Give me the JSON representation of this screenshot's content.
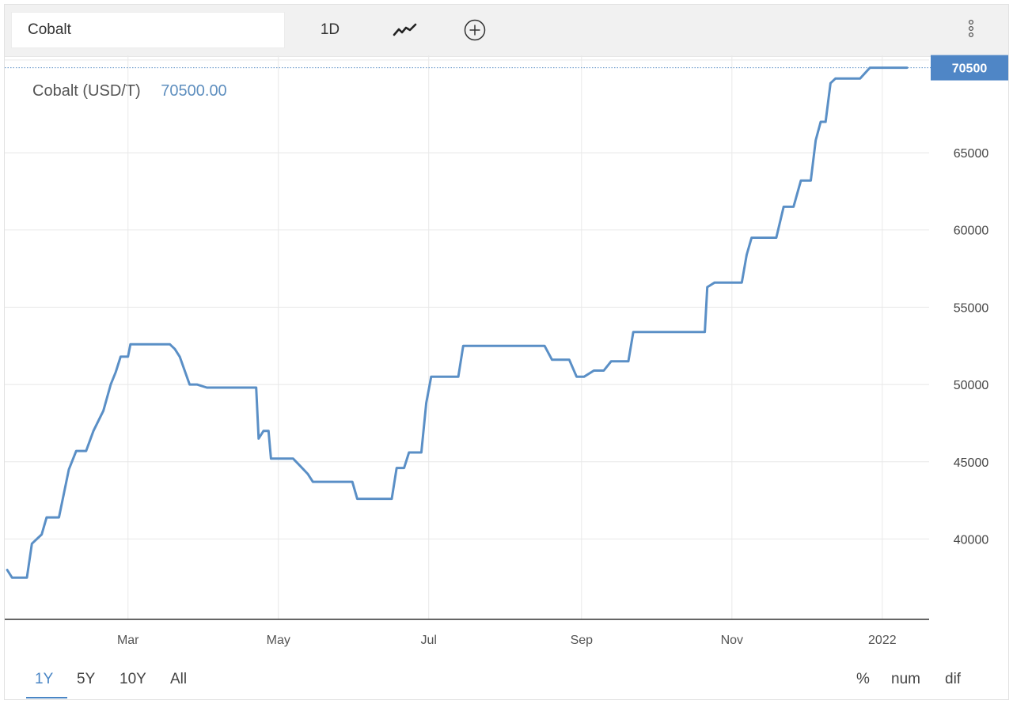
{
  "toolbar": {
    "symbol_value": "Cobalt",
    "interval_label": "1D",
    "chart_type_icon": "line-chart-icon",
    "add_icon": "add-circle-icon",
    "more_icon": "vertical-dots-icon"
  },
  "header": {
    "name": "Cobalt (USD/T)",
    "value": "70500.00"
  },
  "colors": {
    "line": "#5a8fc6",
    "last_label_bg": "#4f86c6",
    "grid": "#e8e8e8",
    "active_range": "#4a86c5"
  },
  "ranges": [
    {
      "label": "1Y",
      "active": true
    },
    {
      "label": "5Y",
      "active": false
    },
    {
      "label": "10Y",
      "active": false
    },
    {
      "label": "All",
      "active": false
    }
  ],
  "modes": [
    "%",
    "num",
    "dif"
  ],
  "chart_data": {
    "type": "line",
    "series": [
      {
        "x": [
          "2021-01-11",
          "2021-01-13",
          "2021-01-19",
          "2021-01-21",
          "2021-01-25",
          "2021-01-27",
          "2021-01-29",
          "2021-02-01",
          "2021-02-05",
          "2021-02-08",
          "2021-02-10",
          "2021-02-12",
          "2021-02-15",
          "2021-02-19",
          "2021-02-22",
          "2021-02-24",
          "2021-02-26",
          "2021-03-01",
          "2021-03-02",
          "2021-03-18",
          "2021-03-20",
          "2021-03-22",
          "2021-03-26",
          "2021-03-29",
          "2021-04-02",
          "2021-04-05",
          "2021-04-22",
          "2021-04-23",
          "2021-04-25",
          "2021-04-27",
          "2021-04-28",
          "2021-04-30",
          "2021-05-07",
          "2021-05-10",
          "2021-05-13",
          "2021-05-15",
          "2021-05-17",
          "2021-05-31",
          "2021-06-02",
          "2021-06-16",
          "2021-06-18",
          "2021-06-21",
          "2021-06-23",
          "2021-06-28",
          "2021-06-30",
          "2021-07-02",
          "2021-07-13",
          "2021-07-15",
          "2021-08-17",
          "2021-08-20",
          "2021-08-27",
          "2021-08-30",
          "2021-09-02",
          "2021-09-06",
          "2021-09-10",
          "2021-09-13",
          "2021-09-20",
          "2021-09-22",
          "2021-10-21",
          "2021-10-22",
          "2021-10-25",
          "2021-11-05",
          "2021-11-07",
          "2021-11-09",
          "2021-11-19",
          "2021-11-22",
          "2021-11-26",
          "2021-11-29",
          "2021-12-03",
          "2021-12-05",
          "2021-12-07",
          "2021-12-09",
          "2021-12-11",
          "2021-12-13",
          "2021-12-23",
          "2021-12-27",
          "2022-01-11"
        ],
        "values": [
          38000,
          37500,
          37500,
          39700,
          40300,
          41400,
          41400,
          41400,
          44500,
          45700,
          45700,
          45700,
          47000,
          48300,
          50000,
          50800,
          51800,
          51800,
          52600,
          52600,
          52300,
          51800,
          50000,
          50000,
          49800,
          49800,
          49800,
          46500,
          47000,
          47000,
          45200,
          45200,
          45200,
          44700,
          44200,
          43700,
          43700,
          43700,
          42600,
          42600,
          44600,
          44600,
          45600,
          45600,
          48800,
          50500,
          50500,
          52500,
          52500,
          51600,
          51600,
          50500,
          50500,
          50900,
          50900,
          51500,
          51500,
          53400,
          53400,
          56300,
          56600,
          56600,
          58400,
          59500,
          59500,
          61500,
          61500,
          63200,
          63200,
          65800,
          67000,
          67000,
          69500,
          69800,
          69800,
          70500,
          70500
        ]
      }
    ],
    "x_ticks": [
      "Mar",
      "May",
      "Jul",
      "Sep",
      "Nov",
      "2022"
    ],
    "y_ticks": [
      40000,
      45000,
      50000,
      55000,
      60000,
      65000
    ],
    "last_value_label": "70500",
    "ylim": [
      34800,
      71300
    ],
    "xlim": [
      "2021-01-10",
      "2022-01-20"
    ],
    "grid": true,
    "legend": "none"
  }
}
